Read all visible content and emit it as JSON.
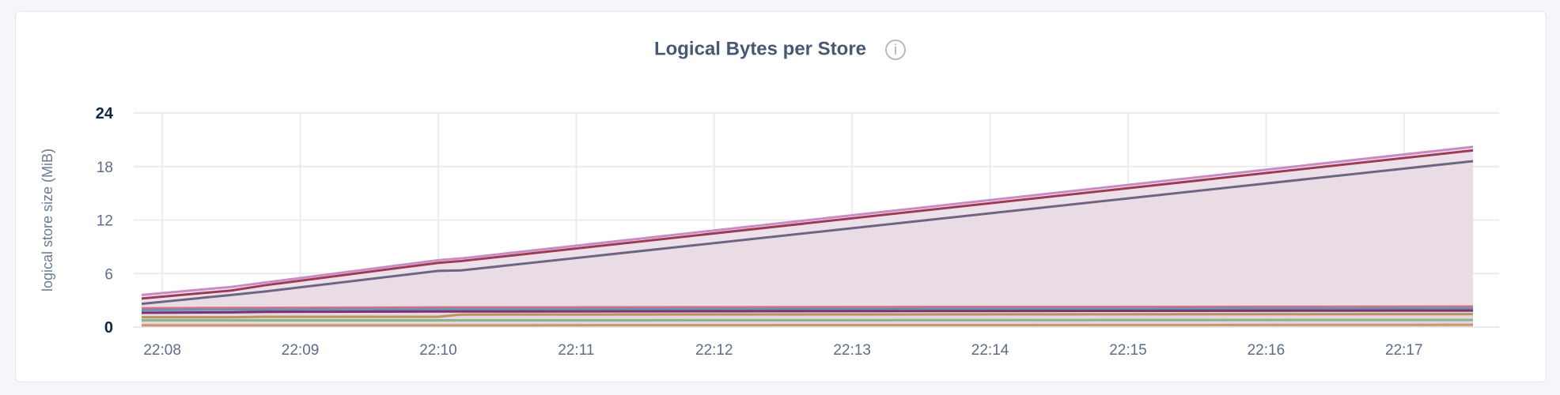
{
  "chart_data": {
    "type": "area",
    "title": "Logical Bytes per Store",
    "title_icon": "info-icon",
    "ylabel": "logical store size (MiB)",
    "xlabel": "",
    "ylim": [
      0,
      24
    ],
    "yticks": [
      "0",
      "6",
      "12",
      "18",
      "24"
    ],
    "xticks": [
      "22:08",
      "22:09",
      "22:10",
      "22:11",
      "22:12",
      "22:13",
      "22:14",
      "22:15",
      "22:16",
      "22:17"
    ],
    "xrange": [
      "22:07:51",
      "22:17:30"
    ],
    "grid": true,
    "x": [
      "22:07:51",
      "22:08:30",
      "22:08:45",
      "22:10:00",
      "22:10:10",
      "22:17:30"
    ],
    "series": [
      {
        "color": "#c98bc4",
        "values": [
          3.6,
          4.5,
          5.0,
          7.5,
          7.7,
          20.2
        ]
      },
      {
        "color": "#9e3a55",
        "values": [
          3.2,
          4.1,
          4.7,
          7.2,
          7.4,
          19.8
        ]
      },
      {
        "color": "#6c6683",
        "values": [
          2.6,
          3.6,
          4.0,
          6.3,
          6.35,
          18.6
        ]
      },
      {
        "color": "#d9707a",
        "values": [
          2.1,
          2.15,
          2.15,
          2.2,
          2.2,
          2.3
        ]
      },
      {
        "color": "#6b8fbf",
        "values": [
          1.9,
          1.95,
          1.95,
          2.0,
          2.0,
          2.1
        ]
      },
      {
        "color": "#7a3468",
        "values": [
          1.6,
          1.65,
          1.7,
          1.75,
          1.75,
          1.85
        ]
      },
      {
        "color": "#b9955c",
        "values": [
          1.1,
          1.1,
          1.15,
          1.15,
          1.4,
          1.45
        ]
      },
      {
        "color": "#88b48a",
        "values": [
          0.75,
          0.75,
          0.75,
          0.75,
          0.75,
          0.8
        ]
      },
      {
        "color": "#c39a68",
        "values": [
          0.2,
          0.2,
          0.2,
          0.2,
          0.2,
          0.25
        ]
      }
    ],
    "fill_color": "#e4d5df"
  }
}
